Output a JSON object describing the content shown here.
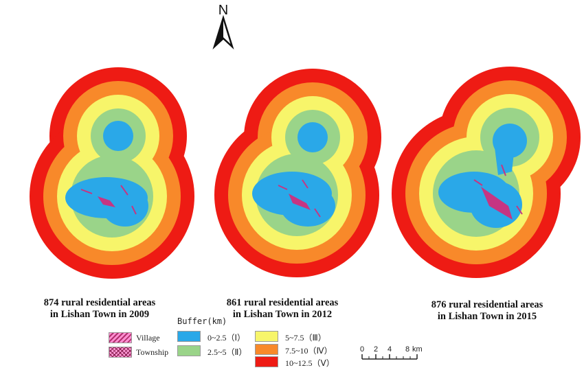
{
  "north_arrow": {
    "label": "N"
  },
  "panels": [
    {
      "caption_line1": "874 rural residential areas",
      "caption_line2": "in Lishan Town in 2009"
    },
    {
      "caption_line1": "861 rural residential areas",
      "caption_line2": "in Lishan Town in 2012"
    },
    {
      "caption_line1": "876 rural residential areas",
      "caption_line2": "in Lishan Town in 2015"
    }
  ],
  "legend": {
    "title": "Buffer(km)",
    "settlement_types": [
      {
        "label": "Village",
        "icon": "village-hatch-icon"
      },
      {
        "label": "Township",
        "icon": "township-crosshatch-icon"
      }
    ],
    "buffers": [
      {
        "label": "0~2.5（Ⅰ）",
        "color": "#2aa8e8"
      },
      {
        "label": "2.5~5（Ⅱ）",
        "color": "#9ad489"
      },
      {
        "label": "5~7.5（Ⅲ）",
        "color": "#f7f56a"
      },
      {
        "label": "7.5~10（Ⅳ）",
        "color": "#f8892a"
      },
      {
        "label": "10~12.5（Ⅴ）",
        "color": "#ee1b14"
      }
    ]
  },
  "scale_bar": {
    "ticks": [
      "0",
      "2",
      "4",
      "8"
    ],
    "unit": "km"
  }
}
